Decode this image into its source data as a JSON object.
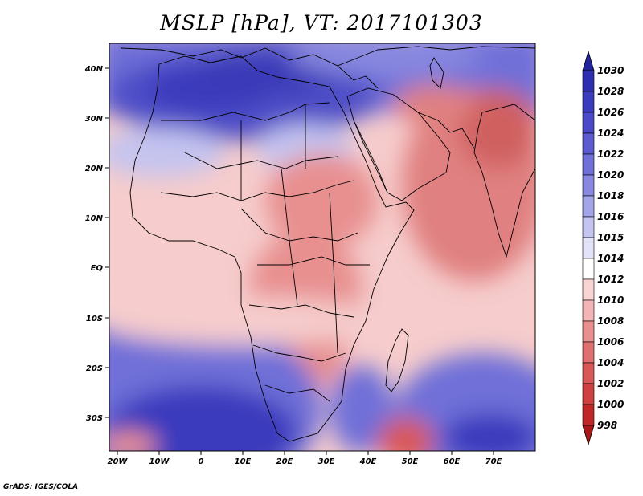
{
  "title": "MSLP [hPa], VT: 2017101303",
  "credit": "GrADS: IGES/COLA",
  "lat_labels": [
    "40N",
    "30N",
    "20N",
    "10N",
    "EQ",
    "10S",
    "20S",
    "30S"
  ],
  "lon_labels": [
    "20W",
    "10W",
    "0",
    "10E",
    "20E",
    "30E",
    "40E",
    "50E",
    "60E",
    "70E"
  ],
  "colorbar": {
    "levels": [
      "1030",
      "1028",
      "1026",
      "1024",
      "1022",
      "1020",
      "1018",
      "1016",
      "1015",
      "1014",
      "1012",
      "1010",
      "1008",
      "1006",
      "1004",
      "1002",
      "1000",
      "998"
    ],
    "colors": [
      "#24249c",
      "#2e2eb0",
      "#3b3bbd",
      "#4a4ac8",
      "#5c5cd0",
      "#7070d8",
      "#8888e0",
      "#a4a4e8",
      "#c4c4f0",
      "#e2e2f8",
      "#ffffff",
      "#f9d4d4",
      "#f2b4b4",
      "#e89090",
      "#df7070",
      "#d85858",
      "#cf4040",
      "#c02828",
      "#a81818"
    ]
  },
  "colors": {
    "land_border": "#000000",
    "background": "#ffffff"
  }
}
